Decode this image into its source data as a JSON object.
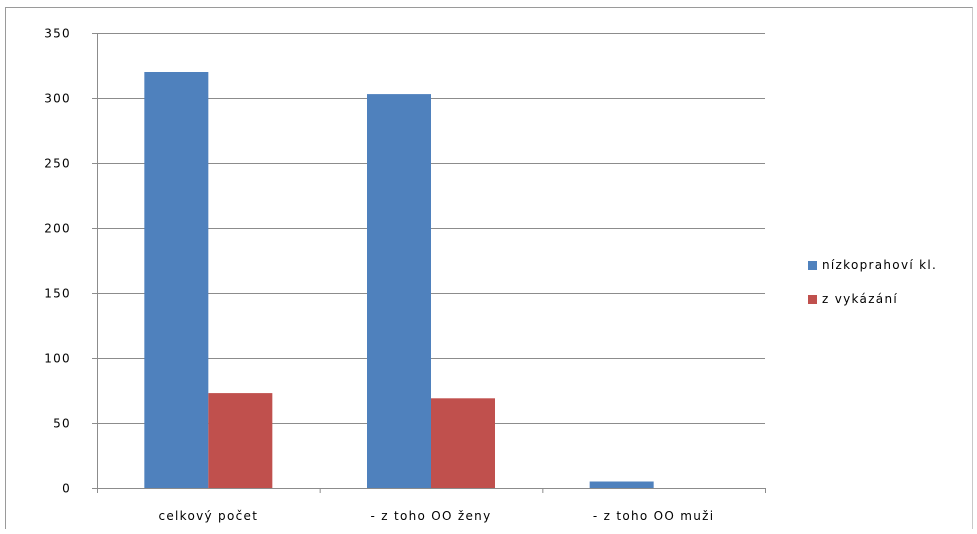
{
  "chart_data": {
    "type": "bar",
    "title": "",
    "xlabel": "",
    "ylabel": "",
    "categories": [
      "celkový počet",
      "- z toho OO ženy",
      "- z toho OO muži"
    ],
    "series": [
      {
        "name": "nízkoprahoví kl.",
        "color": "#4f81bd",
        "values": [
          320,
          303,
          5
        ]
      },
      {
        "name": "z vykázání",
        "color": "#c0504d",
        "values": [
          73,
          69,
          0
        ]
      }
    ],
    "ylim": [
      0,
      350
    ],
    "yticks": [
      0,
      50,
      100,
      150,
      200,
      250,
      300,
      350
    ],
    "grid": true,
    "legend_position": "right"
  }
}
